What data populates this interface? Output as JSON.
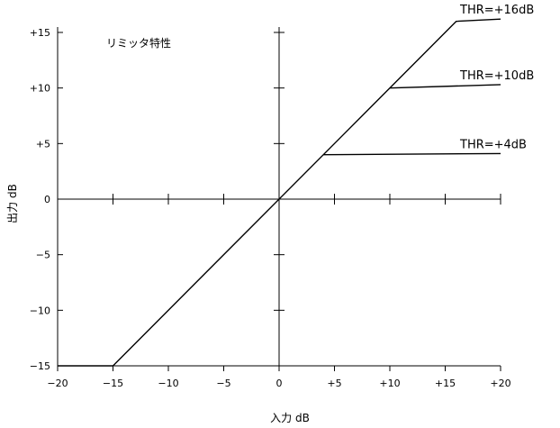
{
  "chart_data": {
    "type": "line",
    "title": "リミッタ特性",
    "xlabel": "入力 dB",
    "ylabel": "出力 dB",
    "xlim": [
      -20,
      20
    ],
    "ylim": [
      -15,
      15
    ],
    "xticks": [
      -20,
      -15,
      -10,
      -5,
      0,
      5,
      10,
      15,
      20
    ],
    "xtick_labels": [
      "−20",
      "−15",
      "−10",
      "−5",
      "0",
      "+5",
      "+10",
      "+15",
      "+20"
    ],
    "yticks": [
      -15,
      -10,
      -5,
      0,
      5,
      10,
      15
    ],
    "ytick_labels": [
      "−15",
      "−10",
      "−5",
      "0",
      "+5",
      "+10",
      "+15"
    ],
    "grid": false,
    "line_color": "#000000",
    "series": [
      {
        "name": "THR=+16dB",
        "x": [
          -20,
          -15,
          16,
          20
        ],
        "y": [
          -15,
          -15,
          16,
          16.2
        ]
      },
      {
        "name": "THR=+10dB",
        "x": [
          10,
          20
        ],
        "y": [
          10,
          10.3
        ]
      },
      {
        "name": "THR=+4dB",
        "x": [
          4,
          20
        ],
        "y": [
          4,
          4.1
        ]
      }
    ]
  }
}
